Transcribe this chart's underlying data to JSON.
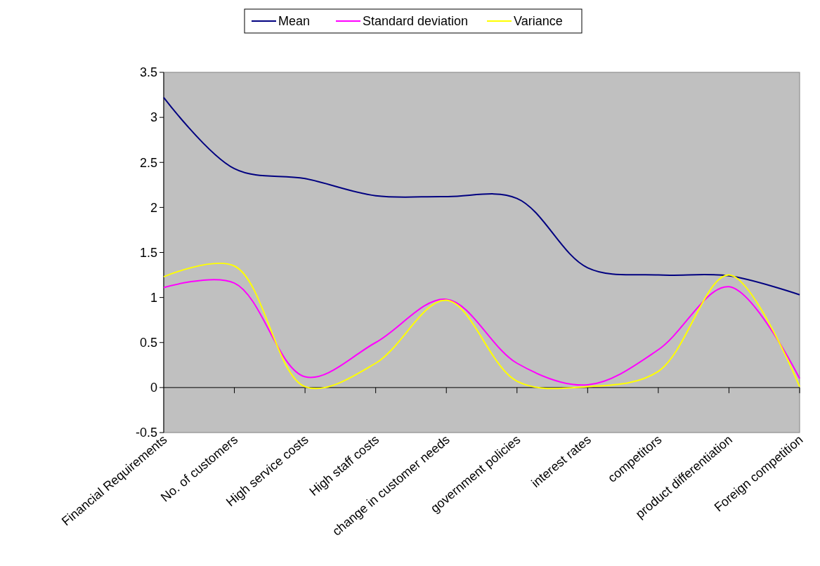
{
  "chart_data": {
    "type": "line",
    "categories": [
      "Financial Requirements",
      "No. of customers",
      "High service costs",
      "High staff costs",
      "change in customer needs",
      "government policies",
      "interest rates",
      "competitors",
      "product differentiation",
      "Foreign competition"
    ],
    "series": [
      {
        "name": "Mean",
        "color": "#000080",
        "values": [
          3.22,
          2.43,
          2.32,
          2.13,
          2.12,
          2.1,
          1.33,
          1.25,
          1.24,
          1.03
        ]
      },
      {
        "name": "Standard deviation",
        "color": "#ff00ff",
        "values": [
          1.11,
          1.16,
          0.12,
          0.5,
          0.98,
          0.27,
          0.03,
          0.42,
          1.12,
          0.1
        ]
      },
      {
        "name": "Variance",
        "color": "#ffff00",
        "values": [
          1.23,
          1.35,
          0.01,
          0.27,
          0.97,
          0.07,
          0.01,
          0.18,
          1.25,
          0.01
        ]
      }
    ],
    "ylim": [
      -0.5,
      3.5
    ],
    "yticks": [
      -0.5,
      0,
      0.5,
      1,
      1.5,
      2,
      2.5,
      3,
      3.5
    ],
    "legend": "top",
    "marker": "none",
    "line_style": "solid"
  }
}
